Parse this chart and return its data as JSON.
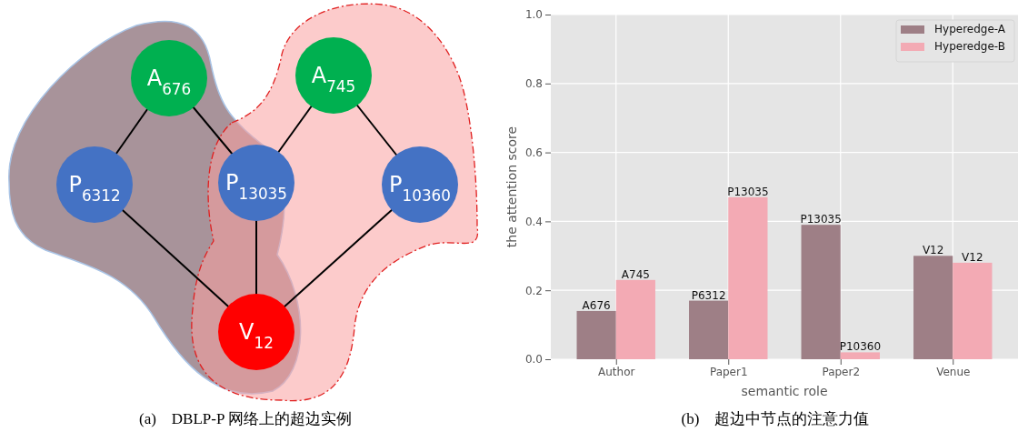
{
  "chart_data": [
    {
      "type": "other",
      "title": "(a)　DBLP-P 网络上的超边实例",
      "annotations": [
        "A$_{676}$",
        "A$_{745}$",
        "P$_{6312}$",
        "P$_{13035}$",
        "P$_{10360}$",
        "V$_{12}$"
      ]
    },
    {
      "type": "bar",
      "title": "(b)　超边中节点的注意力值",
      "xlabel": "semantic role",
      "ylabel": "the attention score",
      "categories": [
        "Author",
        "Paper1",
        "Paper2",
        "Venue"
      ],
      "series": [
        {
          "name": "Hyperedge-A",
          "color": "#9e7f86",
          "values": [
            0.14,
            0.17,
            0.39,
            0.3
          ],
          "value_labels": [
            "A676",
            "P6312",
            "P13035",
            "V12"
          ]
        },
        {
          "name": "Hyperedge-B",
          "color": "#f3aab4",
          "values": [
            0.23,
            0.47,
            0.02,
            0.28
          ],
          "value_labels": [
            "A745",
            "P13035",
            "P10360",
            "V12"
          ]
        }
      ],
      "ylim": [
        0,
        1.0
      ],
      "yticks": [
        {
          "value": 0,
          "label": "0.0"
        },
        {
          "value": 0.2,
          "label": "0.2"
        },
        {
          "value": 0.4,
          "label": "0.4"
        },
        {
          "value": 0.6,
          "label": "0.6"
        },
        {
          "value": 0.8,
          "label": "0.8"
        },
        {
          "value": 1.0,
          "label": "1.0"
        }
      ],
      "grid": true,
      "legend": "top right"
    }
  ]
}
